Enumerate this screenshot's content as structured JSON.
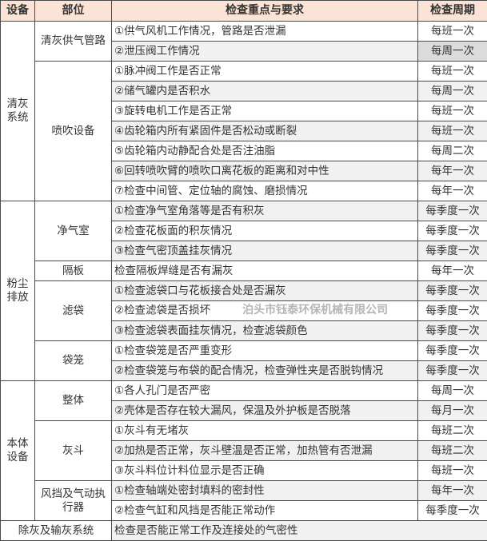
{
  "headers": [
    "设备",
    "部位",
    "检查重点与要求",
    "检查周期"
  ],
  "watermark": "泊头市钰泰环保机械有限公司",
  "groups": [
    {
      "equipment": "清灰系统",
      "parts": [
        {
          "name": "清灰供气管路",
          "items": [
            {
              "req": "①供气风机工作情况，管路是否泄漏",
              "period": "每班一次"
            },
            {
              "req": "②泄压阀工作情况",
              "period": "每周一次"
            }
          ]
        },
        {
          "name": "喷吹设备",
          "items": [
            {
              "req": "①脉冲阀工作是否正常",
              "period": "每班一次"
            },
            {
              "req": "②储气罐内是否积水",
              "period": "每周一次"
            },
            {
              "req": "③旋转电机工作是否正常",
              "period": "每班一次"
            },
            {
              "req": "④齿轮箱内所有紧固件是否松动或断裂",
              "period": "每班一次"
            },
            {
              "req": "⑤齿轮箱内动静配合处是否注油脂",
              "period": "每周二次"
            },
            {
              "req": "⑥回转喷吹臂的喷吹口离花板的距离和对中性",
              "period": "每年一次"
            },
            {
              "req": "⑦检查中间管、定位轴的腐蚀、磨损情况",
              "period": "每年一次"
            }
          ]
        }
      ]
    },
    {
      "equipment": "粉尘排放",
      "parts": [
        {
          "name": "净气室",
          "items": [
            {
              "req": "①检查净气室角落等是否有积灰",
              "period": "每季度一次"
            },
            {
              "req": "②检查花板面的积灰情况",
              "period": "每季度一次"
            },
            {
              "req": "③检查气密顶盖挂灰情况",
              "period": "每季度一次"
            }
          ]
        },
        {
          "name": "隔板",
          "items": [
            {
              "req": "检查隔板焊缝是否有漏灰",
              "period": "每年一次"
            }
          ]
        },
        {
          "name": "滤袋",
          "items": [
            {
              "req": "①检查滤袋口与花板接合处是否漏灰",
              "period": "每季度一次"
            },
            {
              "req": "②检查滤袋是否损坏",
              "period": "每季度一次"
            },
            {
              "req": "③检查滤袋表面挂灰情况，检查滤袋颜色",
              "period": "每季度一次"
            }
          ]
        },
        {
          "name": "袋笼",
          "items": [
            {
              "req": "①检查袋笼是否严重变形",
              "period": "每季度一次"
            },
            {
              "req": "②检查袋笼与布袋的配合情况，检查弹性夹是否脱钩情况",
              "period": "每季度一次"
            }
          ]
        }
      ]
    },
    {
      "equipment": "本体设备",
      "parts": [
        {
          "name": "整体",
          "items": [
            {
              "req": "①各人孔门是否严密",
              "period": "每周一次"
            },
            {
              "req": "②壳体是否存在较大漏风，保温及外护板是否脱落",
              "period": "每月一次"
            }
          ]
        },
        {
          "name": "灰斗",
          "items": [
            {
              "req": "①灰斗有无堵灰",
              "period": "每班二次"
            },
            {
              "req": "②加热是否正常，灰斗壁温是否正常，加热管有否泄漏",
              "period": "每班二次"
            },
            {
              "req": "③灰斗料位计料位显示是否正确",
              "period": "每班一次"
            }
          ]
        },
        {
          "name": "风挡及气动执行器",
          "items": [
            {
              "req": "①检查轴端处密封填料的密封性",
              "period": "每年一次"
            },
            {
              "req": "②检查气缸和风挡是否能正常动作",
              "period": "每季度一次"
            }
          ]
        }
      ]
    }
  ],
  "last_row": {
    "equipment": "除灰及输灰系统",
    "req": "检查是否能正常工作及连接处的气密性"
  }
}
